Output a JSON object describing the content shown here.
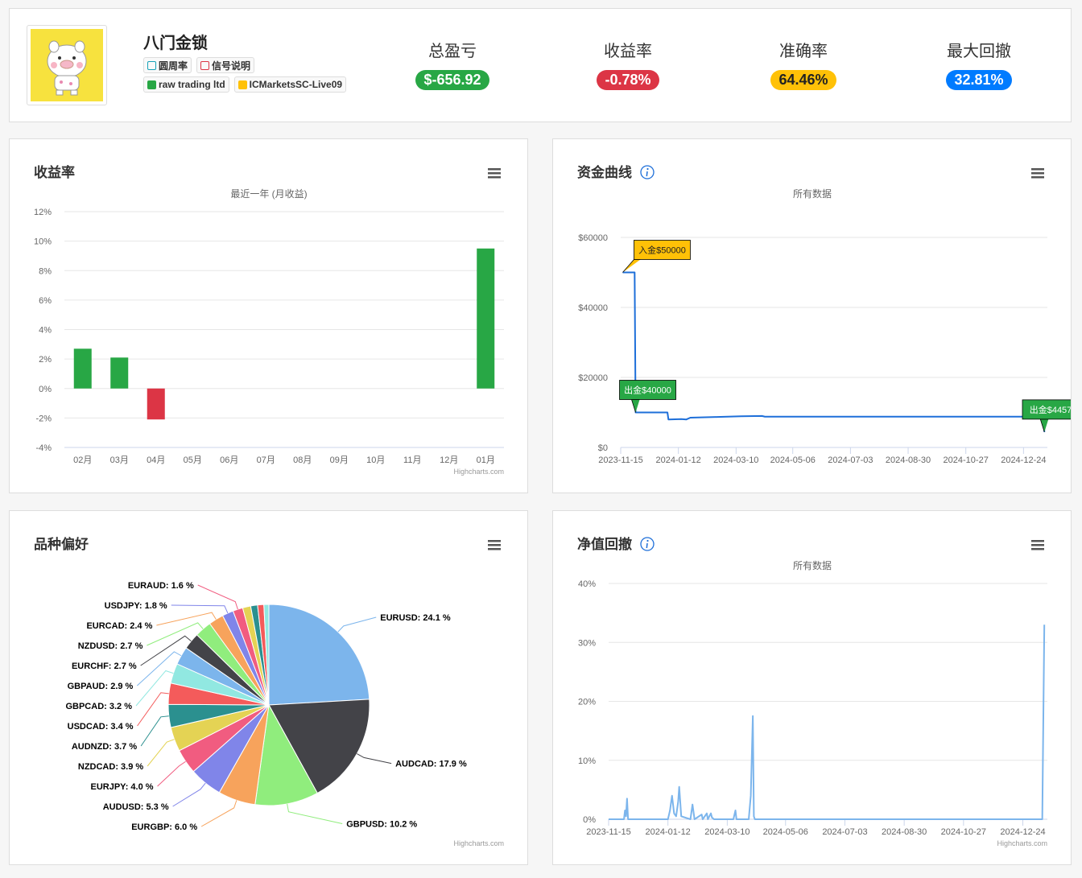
{
  "header": {
    "name": "八门金锁",
    "tags": [
      "圆周率",
      "信号说明",
      "raw trading ltd",
      "ICMarketsSC-Live09"
    ],
    "stats": [
      {
        "label": "总盈亏",
        "value": "$-656.92"
      },
      {
        "label": "收益率",
        "value": "-0.78%"
      },
      {
        "label": "准确率",
        "value": "64.46%"
      },
      {
        "label": "最大回撤",
        "value": "32.81%"
      }
    ]
  },
  "chart_data": [
    {
      "type": "bar",
      "title": "收益率",
      "subtitle": "最近一年 (月收益)",
      "categories": [
        "02月",
        "03月",
        "04月",
        "05月",
        "06月",
        "07月",
        "08月",
        "09月",
        "10月",
        "11月",
        "12月",
        "01月"
      ],
      "values": [
        2.7,
        2.1,
        -2.1,
        null,
        null,
        null,
        null,
        null,
        null,
        null,
        null,
        9.5
      ],
      "color": "#28a745",
      "negative_color": "#dc3545",
      "ylim": [
        -4,
        12
      ],
      "yticks": [
        {
          "value": -4,
          "label": "-4%"
        },
        {
          "value": -2,
          "label": "-2%"
        },
        {
          "value": 0,
          "label": "0%"
        },
        {
          "value": 2,
          "label": "2%"
        },
        {
          "value": 4,
          "label": "4%"
        },
        {
          "value": 6,
          "label": "6%"
        },
        {
          "value": 8,
          "label": "8%"
        },
        {
          "value": 10,
          "label": "10%"
        },
        {
          "value": 12,
          "label": "12%"
        }
      ],
      "grid": true,
      "credits": "Highcharts.com"
    },
    {
      "type": "line",
      "title": "资金曲线",
      "subtitle": "所有数据",
      "x": [
        "2023-11-17",
        "2023-11-29",
        "2023-11-30",
        "2024-01-01",
        "2024-01-02",
        "2024-01-15",
        "2024-01-20",
        "2024-01-24",
        "2024-02-20",
        "2024-03-15",
        "2024-04-05",
        "2024-04-08",
        "2025-01-13",
        "2025-01-14"
      ],
      "values": [
        50000,
        50000,
        10000,
        10000,
        8000,
        8100,
        8000,
        8500,
        8700,
        8900,
        9000,
        8800,
        8800,
        4400
      ],
      "color": "#1e6fd9",
      "xlim": [
        "2023-11-15",
        "2025-01-17"
      ],
      "xticks": [
        "2023-11-15",
        "2024-01-12",
        "2024-03-10",
        "2024-05-06",
        "2024-07-03",
        "2024-08-30",
        "2024-10-27",
        "2024-12-24"
      ],
      "ylim": [
        0,
        60000
      ],
      "yticks": [
        {
          "value": 0,
          "label": "$0"
        },
        {
          "value": 20000,
          "label": "$20000"
        },
        {
          "value": 40000,
          "label": "$40000"
        },
        {
          "value": 60000,
          "label": "$60000"
        }
      ],
      "grid": true,
      "annotations": [
        {
          "x": "2023-11-17",
          "text": "入金$50000",
          "color": "#ffc107"
        },
        {
          "x": "2023-11-30",
          "text": "出金$40000",
          "color": "#28a745"
        },
        {
          "x": "2025-01-14",
          "text": "出金$4457",
          "color": "#28a745"
        }
      ]
    },
    {
      "type": "pie",
      "title": "品种偏好",
      "values": [
        24.1,
        17.9,
        10.2,
        6.0,
        5.3,
        4.0,
        3.9,
        3.7,
        3.4,
        3.2,
        2.9,
        2.7,
        2.7,
        2.4,
        1.8,
        1.6,
        1.3,
        1.1,
        1.0,
        0.8
      ],
      "value_labels": [
        "EURUSD: 24.1 %",
        "AUDCAD: 17.9 %",
        "GBPUSD: 10.2 %",
        "EURGBP: 6.0 %",
        "AUDUSD: 5.3 %",
        "EURJPY: 4.0 %",
        "NZDCAD: 3.9 %",
        "AUDNZD: 3.7 %",
        "USDCAD: 3.4 %",
        "GBPCAD: 3.2 %",
        "GBPAUD: 2.9 %",
        "EURCHF: 2.7 %",
        "NZDUSD: 2.7 %",
        "EURCAD: 2.4 %",
        "USDJPY: 1.8 %",
        "EURAUD: 1.6 %",
        null,
        null,
        null,
        null
      ],
      "colors": [
        "#7cb5ec",
        "#434348",
        "#90ed7d",
        "#f7a35c",
        "#8085e9",
        "#f15c80",
        "#e4d354",
        "#2b908f",
        "#f45b5b",
        "#91e8e1",
        "#7cb5ec",
        "#434348",
        "#90ed7d",
        "#f7a35c",
        "#8085e9",
        "#f15c80",
        "#e4d354",
        "#2b908f",
        "#f45b5b",
        "#91e8e1"
      ],
      "credits": "Highcharts.com"
    },
    {
      "type": "line",
      "title": "净值回撤",
      "subtitle": "所有数据",
      "x": [
        "2023-11-15",
        "2023-11-30",
        "2023-12-01",
        "2023-12-02",
        "2023-12-03",
        "2023-12-04",
        "2024-01-12",
        "2024-01-14",
        "2024-01-16",
        "2024-01-18",
        "2024-01-20",
        "2024-01-22",
        "2024-01-23",
        "2024-01-25",
        "2024-02-03",
        "2024-02-05",
        "2024-02-07",
        "2024-02-14",
        "2024-02-15",
        "2024-02-19",
        "2024-02-20",
        "2024-02-23",
        "2024-02-24",
        "2024-02-26",
        "2024-03-16",
        "2024-03-18",
        "2024-03-19",
        "2024-03-31",
        "2024-04-02",
        "2024-04-04",
        "2024-04-05",
        "2024-04-06",
        "2025-01-12",
        "2025-01-14"
      ],
      "values": [
        0,
        0,
        1.5,
        0.5,
        3.5,
        0,
        0,
        1.5,
        4,
        1,
        0.5,
        3,
        5.5,
        0.5,
        0,
        2.5,
        0,
        0.8,
        0,
        1,
        0,
        1,
        0.3,
        0,
        0,
        1.5,
        0,
        0,
        4,
        17.5,
        0.5,
        0,
        0,
        33
      ],
      "color": "#7cb5ec",
      "xlim": [
        "2023-11-15",
        "2025-01-17"
      ],
      "xticks": [
        "2023-11-15",
        "2024-01-12",
        "2024-03-10",
        "2024-05-06",
        "2024-07-03",
        "2024-08-30",
        "2024-10-27",
        "2024-12-24"
      ],
      "ylim": [
        0,
        40
      ],
      "yticks": [
        {
          "value": 0,
          "label": "0%"
        },
        {
          "value": 10,
          "label": "10%"
        },
        {
          "value": 20,
          "label": "20%"
        },
        {
          "value": 30,
          "label": "30%"
        },
        {
          "value": 40,
          "label": "40%"
        }
      ],
      "grid": true,
      "credits": "Highcharts.com"
    }
  ]
}
